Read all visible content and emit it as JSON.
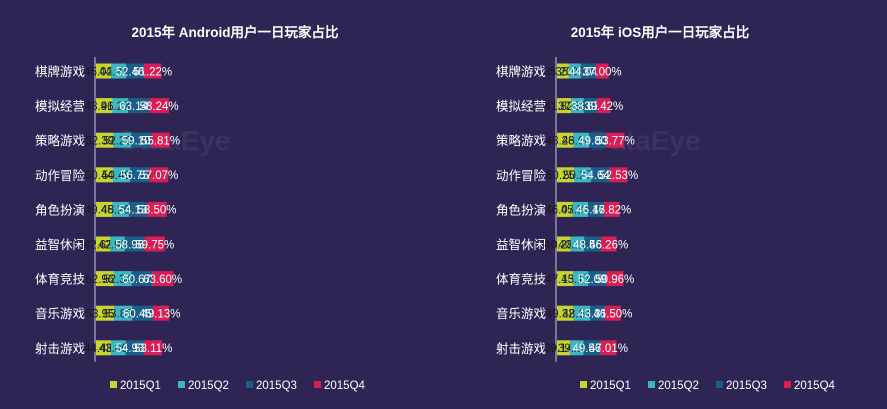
{
  "colors": {
    "background": "#2e2555",
    "text": "#ffffff",
    "label_text": "#ffffff",
    "axis": "#c9c6d9",
    "q1": "#c8d42f",
    "q2": "#3bb7c4",
    "q3": "#1a5f8a",
    "q4": "#d71f56",
    "watermark": "#4a4470"
  },
  "watermark": "DataEye",
  "legend": [
    "2015Q1",
    "2015Q2",
    "2015Q3",
    "2015Q4"
  ],
  "chart_data": [
    {
      "type": "bar",
      "stacked": true,
      "orientation": "horizontal",
      "title": "2015年 Android用户一日玩家占比",
      "categories": [
        "棋牌游戏",
        "模拟经营",
        "策略游戏",
        "动作冒险",
        "角色扮演",
        "益智休闲",
        "体育竞技",
        "音乐游戏",
        "射击游戏"
      ],
      "series": [
        {
          "name": "2015Q1",
          "values": [
            45.02,
            48.91,
            52.39,
            50.44,
            49.45,
            42.62,
            52.96,
            53.95,
            44.48
          ]
        },
        {
          "name": "2015Q2",
          "values": [
            44.91,
            46.27,
            52.2,
            50.49,
            48.26,
            42.92,
            52.34,
            53.89,
            43.86
          ]
        },
        {
          "name": "2015Q3",
          "values": [
            52.46,
            63.14,
            59.1,
            56.75,
            54.13,
            58.96,
            60.67,
            60.45,
            54.93
          ]
        },
        {
          "name": "2015Q4",
          "values": [
            51.22,
            58.24,
            55.81,
            57.07,
            58.5,
            59.75,
            63.6,
            49.13,
            53.11
          ]
        }
      ],
      "legend_position": "bottom"
    },
    {
      "type": "bar",
      "stacked": true,
      "orientation": "horizontal",
      "title": "2015年 iOS用户一日玩家占比",
      "categories": [
        "棋牌游戏",
        "模拟经营",
        "策略游戏",
        "动作冒险",
        "角色扮演",
        "益智休闲",
        "体育竞技",
        "音乐游戏",
        "射击游戏"
      ],
      "series": [
        {
          "name": "2015Q1",
          "values": [
            35.2,
            41.82,
            48.28,
            50.25,
            46.07,
            40.28,
            47.13,
            49.32,
            39.14
          ]
        },
        {
          "name": "2015Q2",
          "values": [
            35.07,
            37.33,
            46.6,
            50.27,
            45.34,
            40.11,
            45.17,
            48.61,
            39.11
          ]
        },
        {
          "name": "2015Q3",
          "values": [
            44.04,
            38.67,
            49.8,
            54.64,
            46.17,
            48.56,
            52.09,
            43.31,
            49.56
          ]
        },
        {
          "name": "2015Q4",
          "values": [
            37.0,
            39.42,
            53.77,
            52.53,
            46.82,
            46.26,
            50.96,
            46.5,
            47.01
          ]
        }
      ],
      "legend_position": "bottom"
    }
  ]
}
